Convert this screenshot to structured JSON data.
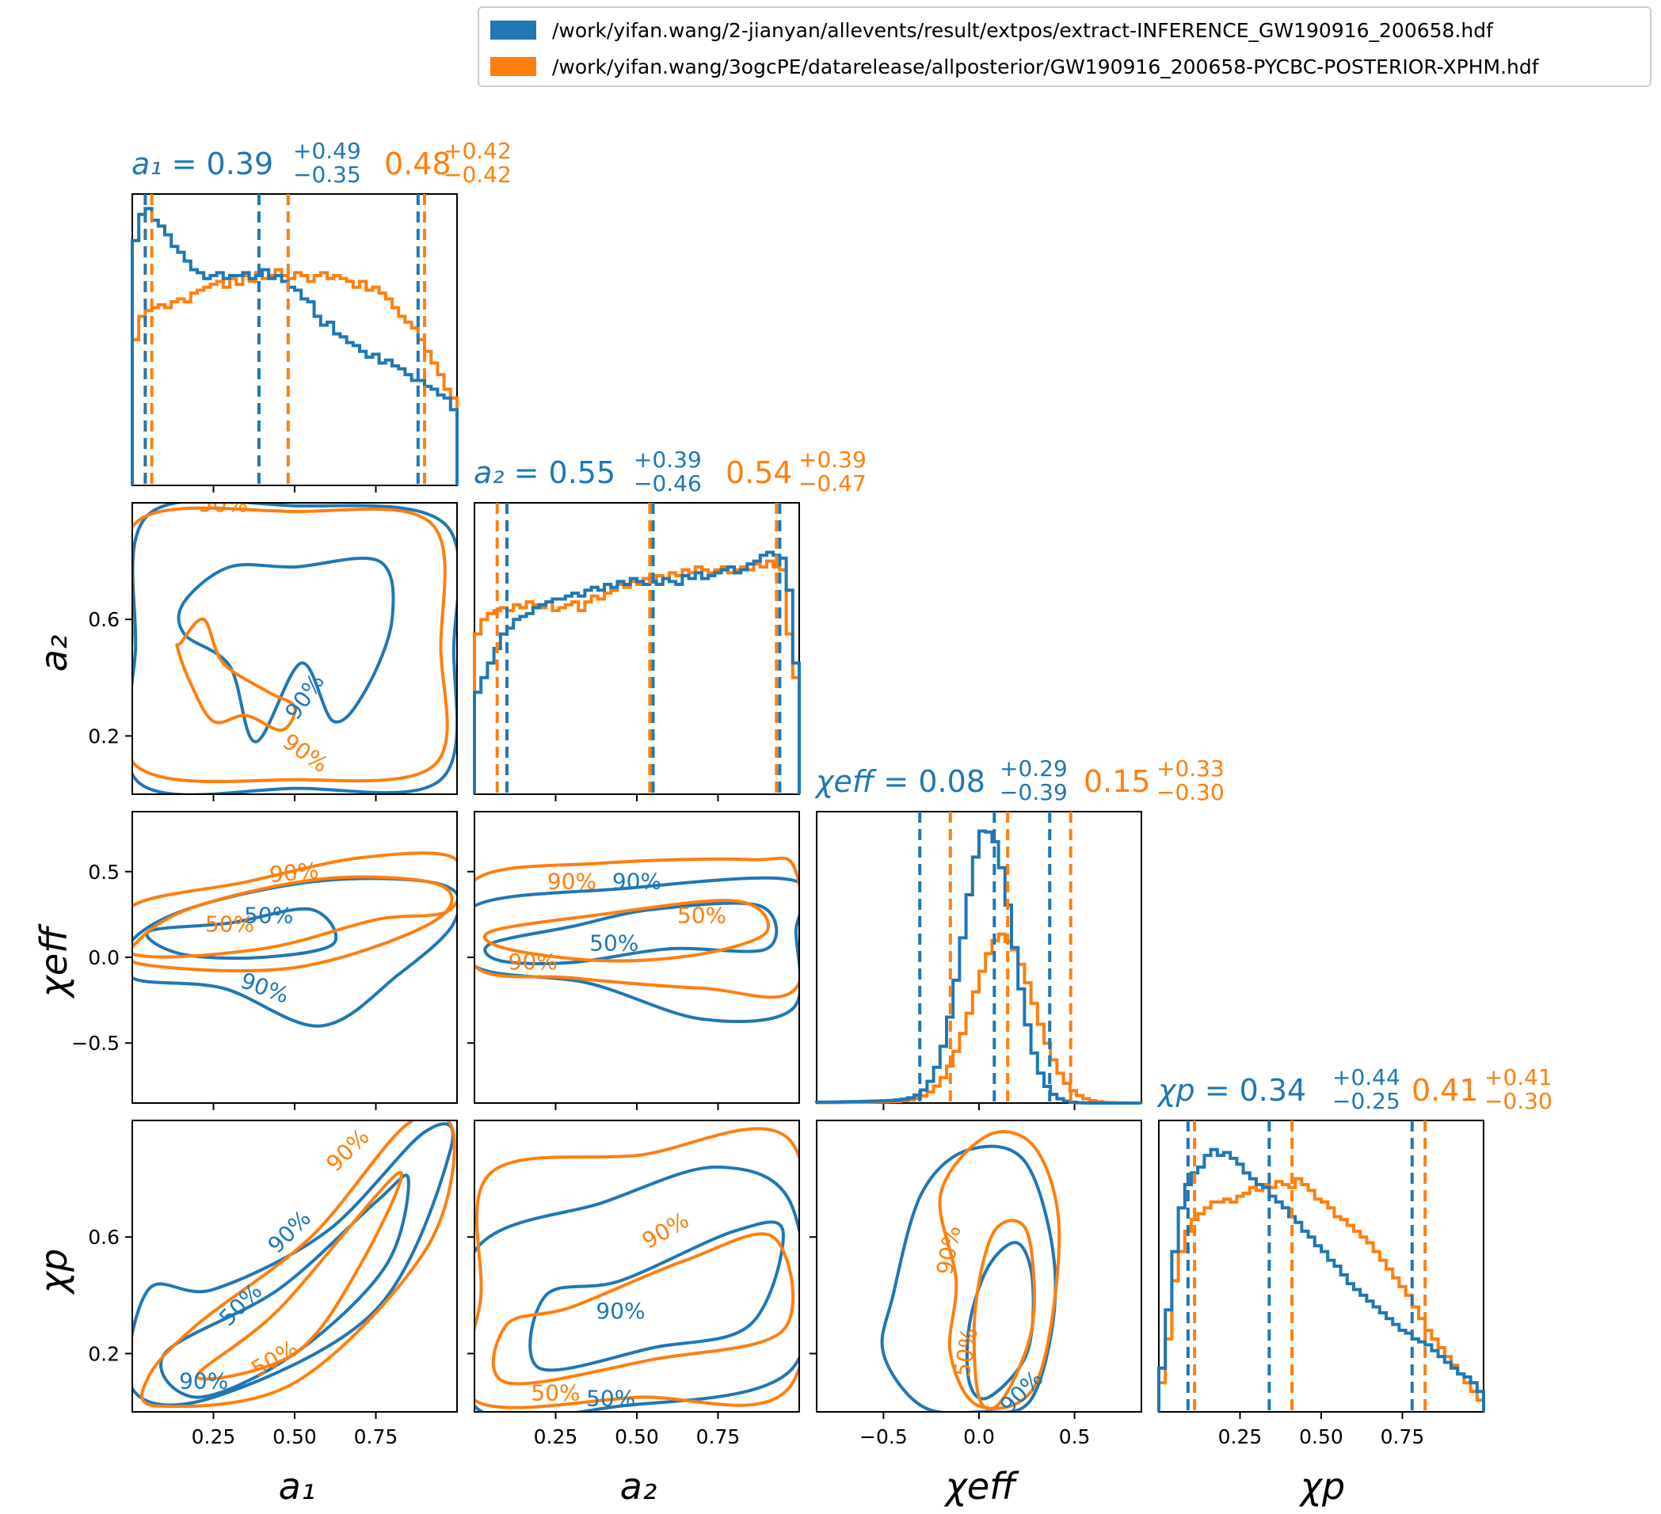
{
  "colors": {
    "blue": "#1f77b4",
    "orange": "#ff7f0e"
  },
  "legend": {
    "placement": "top-right",
    "entries": [
      {
        "label": "/work/yifan.wang/2-jianyan/allevents/result/extpos/extract-INFERENCE_GW190916_200658.hdf",
        "color": "#1f77b4"
      },
      {
        "label": "/work/yifan.wang/3ogcPE/datarelease/allposterior/GW190916_200658-PYCBC-POSTERIOR-XPHM.hdf",
        "color": "#ff7f0e"
      }
    ]
  },
  "chart_data": {
    "type": "corner",
    "parameters": [
      {
        "id": "a1",
        "axis_label": "a₁",
        "range": [
          0.0,
          1.0
        ],
        "ticks": [
          0.25,
          0.5,
          0.75
        ],
        "tick_labels": [
          "0.25",
          "0.50",
          "0.75"
        ],
        "title_label": "a₁ =",
        "stats": [
          {
            "median": "0.39",
            "plus": "+0.49",
            "minus": "−0.35",
            "lines": [
              0.04,
              0.39,
              0.88
            ]
          },
          {
            "median": "0.48",
            "plus": "+0.42",
            "minus": "−0.42",
            "lines": [
              0.06,
              0.48,
              0.9
            ]
          }
        ],
        "hist": [
          [
            0.84,
            0.93,
            0.95,
            0.91,
            0.89,
            0.86,
            0.82,
            0.8,
            0.77,
            0.74,
            0.73,
            0.71,
            0.72,
            0.73,
            0.71,
            0.72,
            0.72,
            0.73,
            0.71,
            0.72,
            0.74,
            0.71,
            0.72,
            0.7,
            0.68,
            0.67,
            0.64,
            0.63,
            0.58,
            0.55,
            0.56,
            0.52,
            0.51,
            0.49,
            0.48,
            0.46,
            0.44,
            0.45,
            0.42,
            0.43,
            0.41,
            0.4,
            0.38,
            0.36,
            0.36,
            0.34,
            0.33,
            0.31,
            0.3,
            0.26
          ],
          [
            0.5,
            0.58,
            0.6,
            0.61,
            0.62,
            0.61,
            0.63,
            0.64,
            0.63,
            0.66,
            0.67,
            0.68,
            0.69,
            0.7,
            0.68,
            0.71,
            0.69,
            0.72,
            0.7,
            0.73,
            0.71,
            0.72,
            0.74,
            0.72,
            0.71,
            0.73,
            0.72,
            0.7,
            0.72,
            0.73,
            0.71,
            0.72,
            0.71,
            0.7,
            0.68,
            0.7,
            0.67,
            0.68,
            0.66,
            0.64,
            0.61,
            0.58,
            0.56,
            0.54,
            0.5,
            0.46,
            0.42,
            0.38,
            0.33,
            0.3
          ]
        ]
      },
      {
        "id": "a2",
        "axis_label": "a₂",
        "range": [
          0.0,
          1.0
        ],
        "ticks": [
          0.25,
          0.5,
          0.75
        ],
        "tick_labels": [
          "0.25",
          "0.50",
          "0.75"
        ],
        "yticks": [
          0.2,
          0.6
        ],
        "ytick_labels": [
          "0.2",
          "0.6"
        ],
        "title_label": "a₂ =",
        "stats": [
          {
            "median": "0.55",
            "plus": "+0.39",
            "minus": "−0.46",
            "lines": [
              0.1,
              0.55,
              0.94
            ]
          },
          {
            "median": "0.54",
            "plus": "+0.39",
            "minus": "−0.47",
            "lines": [
              0.07,
              0.54,
              0.93
            ]
          }
        ],
        "hist": [
          [
            0.35,
            0.4,
            0.45,
            0.5,
            0.55,
            0.57,
            0.6,
            0.61,
            0.62,
            0.64,
            0.65,
            0.66,
            0.67,
            0.67,
            0.68,
            0.69,
            0.68,
            0.7,
            0.71,
            0.7,
            0.72,
            0.71,
            0.73,
            0.72,
            0.74,
            0.73,
            0.72,
            0.73,
            0.72,
            0.74,
            0.73,
            0.72,
            0.75,
            0.74,
            0.76,
            0.74,
            0.75,
            0.76,
            0.77,
            0.78,
            0.76,
            0.77,
            0.79,
            0.8,
            0.82,
            0.83,
            0.82,
            0.81,
            0.7,
            0.45
          ],
          [
            0.55,
            0.6,
            0.62,
            0.63,
            0.64,
            0.63,
            0.65,
            0.64,
            0.66,
            0.65,
            0.64,
            0.66,
            0.63,
            0.64,
            0.65,
            0.66,
            0.63,
            0.66,
            0.68,
            0.67,
            0.69,
            0.7,
            0.72,
            0.71,
            0.73,
            0.72,
            0.74,
            0.73,
            0.75,
            0.74,
            0.76,
            0.75,
            0.77,
            0.76,
            0.78,
            0.77,
            0.76,
            0.77,
            0.78,
            0.76,
            0.77,
            0.78,
            0.77,
            0.79,
            0.78,
            0.8,
            0.78,
            0.77,
            0.55,
            0.4
          ]
        ]
      },
      {
        "id": "chi_eff",
        "axis_label": "χeff",
        "range": [
          -0.85,
          0.85
        ],
        "ticks": [
          -0.5,
          0.0,
          0.5
        ],
        "tick_labels": [
          "−0.5",
          "0.0",
          "0.5"
        ],
        "yticks": [
          -0.5,
          0.0,
          0.5
        ],
        "ytick_labels": [
          "−0.5",
          "0.0",
          "0.5"
        ],
        "title_label": "χeff =",
        "stats": [
          {
            "median": "0.08",
            "plus": "+0.29",
            "minus": "−0.39",
            "lines": [
              -0.31,
              0.08,
              0.37
            ]
          },
          {
            "median": "0.15",
            "plus": "+0.33",
            "minus": "−0.30",
            "lines": [
              -0.15,
              0.15,
              0.48
            ]
          }
        ],
        "blue_density": {
          "center": 0.05,
          "width": 0.13,
          "peak": 0.93,
          "tail_left": 0.3
        },
        "orange_density": {
          "center": 0.13,
          "width": 0.16,
          "peak": 0.56,
          "tail_left": 0.18
        }
      },
      {
        "id": "chi_p",
        "axis_label": "χp",
        "range": [
          0.0,
          1.0
        ],
        "ticks": [
          0.25,
          0.5,
          0.75
        ],
        "tick_labels": [
          "0.25",
          "0.50",
          "0.75"
        ],
        "yticks": [
          0.2,
          0.6
        ],
        "ytick_labels": [
          "0.2",
          "0.6"
        ],
        "title_label": "χp =",
        "stats": [
          {
            "median": "0.34",
            "plus": "+0.44",
            "minus": "−0.25",
            "lines": [
              0.09,
              0.34,
              0.78
            ]
          },
          {
            "median": "0.41",
            "plus": "+0.41",
            "minus": "−0.30",
            "lines": [
              0.11,
              0.41,
              0.82
            ]
          }
        ],
        "hist": [
          [
            0.15,
            0.35,
            0.55,
            0.7,
            0.78,
            0.82,
            0.84,
            0.88,
            0.9,
            0.88,
            0.89,
            0.87,
            0.85,
            0.82,
            0.8,
            0.78,
            0.77,
            0.74,
            0.72,
            0.7,
            0.67,
            0.65,
            0.62,
            0.6,
            0.57,
            0.55,
            0.52,
            0.5,
            0.47,
            0.44,
            0.42,
            0.4,
            0.38,
            0.36,
            0.34,
            0.32,
            0.3,
            0.28,
            0.27,
            0.25,
            0.24,
            0.23,
            0.21,
            0.19,
            0.17,
            0.15,
            0.13,
            0.12,
            0.1,
            0.07
          ],
          [
            0.1,
            0.25,
            0.45,
            0.55,
            0.62,
            0.66,
            0.68,
            0.7,
            0.72,
            0.72,
            0.73,
            0.72,
            0.74,
            0.75,
            0.77,
            0.76,
            0.78,
            0.77,
            0.79,
            0.78,
            0.77,
            0.8,
            0.78,
            0.76,
            0.73,
            0.72,
            0.7,
            0.67,
            0.66,
            0.64,
            0.62,
            0.6,
            0.58,
            0.55,
            0.52,
            0.49,
            0.46,
            0.43,
            0.4,
            0.36,
            0.32,
            0.28,
            0.25,
            0.22,
            0.19,
            0.16,
            0.13,
            0.1,
            0.07,
            0.04
          ]
        ]
      }
    ],
    "contour_labels": {
      "p50": "50%",
      "p90": "90%"
    }
  }
}
